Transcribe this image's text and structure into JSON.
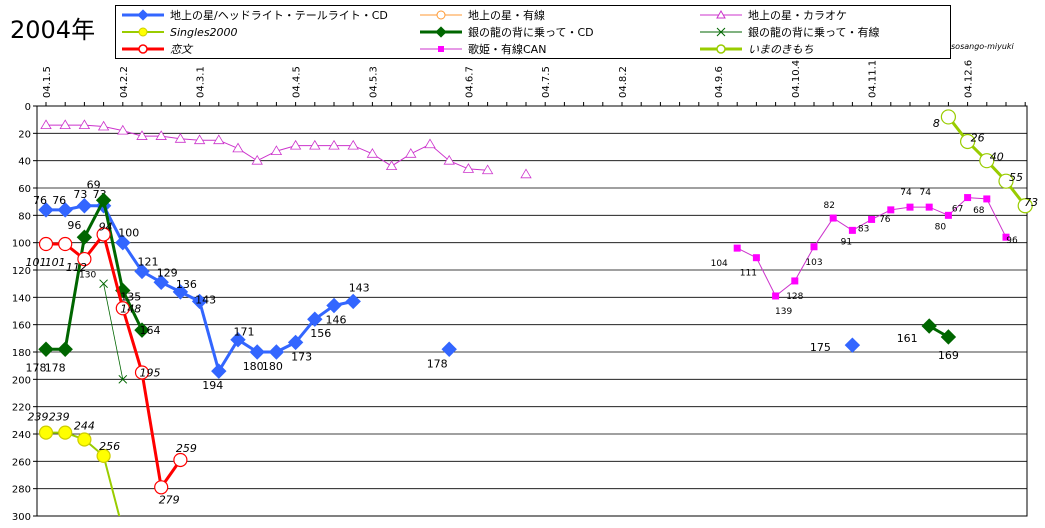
{
  "title": "2004年",
  "credit": "sosango-miyuki",
  "colors": {
    "blue": "#3366FF",
    "orange": "#FF9933",
    "magenta": "#FF00FF",
    "mmagenta": "#CC33CC",
    "yellow": "#FFFF00",
    "yellowLine": "#99CC00",
    "green": "#006600",
    "red": "#FF0000",
    "limeLine": "#99CC00",
    "grid": "#000000"
  },
  "legend": [
    {
      "key": "s1",
      "label": "地上の星/ヘッドライト・テールライト・CD",
      "italic": false
    },
    {
      "key": "s2",
      "label": "地上の星・有線",
      "italic": false
    },
    {
      "key": "s3",
      "label": "地上の星・カラオケ",
      "italic": false
    },
    {
      "key": "s4",
      "label": "Singles2000",
      "italic": true
    },
    {
      "key": "s5",
      "label": "銀の龍の背に乗って・CD",
      "italic": false
    },
    {
      "key": "s6",
      "label": "銀の龍の背に乗って・有線",
      "italic": false
    },
    {
      "key": "s7",
      "label": "恋文",
      "italic": true
    },
    {
      "key": "s8",
      "label": "歌姫・有線CAN",
      "italic": false
    },
    {
      "key": "s9",
      "label": "いまのきもち",
      "italic": true
    }
  ],
  "chart_data": {
    "type": "line",
    "title": "2004年",
    "ylim": [
      0,
      300
    ],
    "yaxis_reversed": true,
    "y_ticks": [
      0,
      20,
      40,
      60,
      80,
      100,
      120,
      140,
      160,
      180,
      200,
      220,
      240,
      260,
      280,
      300
    ],
    "grid": true,
    "num_slots": 52,
    "x_tick_labels": [
      {
        "slot": 0,
        "label": "04.1.5"
      },
      {
        "slot": 4,
        "label": "04.2.2"
      },
      {
        "slot": 8,
        "label": "04.3.1"
      },
      {
        "slot": 13,
        "label": "04.4.5"
      },
      {
        "slot": 17,
        "label": "04.5.3"
      },
      {
        "slot": 22,
        "label": "04.6.7"
      },
      {
        "slot": 26,
        "label": "04.7.5"
      },
      {
        "slot": 30,
        "label": "04.8.2"
      },
      {
        "slot": 35,
        "label": "04.9.6"
      },
      {
        "slot": 39,
        "label": "04.10.4"
      },
      {
        "slot": 43,
        "label": "04.11.1"
      },
      {
        "slot": 48,
        "label": "04.12.6"
      }
    ],
    "series": [
      {
        "key": "s1",
        "name": "地上の星/ヘッドライト・テールライト・CD",
        "points": [
          [
            0,
            76
          ],
          [
            1,
            76
          ],
          [
            2,
            73
          ],
          [
            3,
            73
          ],
          [
            4,
            100
          ],
          [
            5,
            121
          ],
          [
            6,
            129
          ],
          [
            7,
            136
          ],
          [
            8,
            143
          ],
          [
            9,
            194
          ],
          [
            10,
            171
          ],
          [
            11,
            180
          ],
          [
            12,
            180
          ],
          [
            13,
            173
          ],
          [
            14,
            156
          ],
          [
            15,
            146
          ],
          [
            16,
            143
          ],
          [
            21,
            178
          ],
          [
            42,
            175
          ]
        ],
        "segments": [
          [
            0,
            16
          ]
        ],
        "labels": [
          "76",
          "76",
          "73",
          "73",
          "100",
          "121",
          "129",
          "136",
          "143",
          "194",
          "171",
          "180",
          "180",
          "173",
          "156",
          "146",
          "143",
          "178",
          "175"
        ]
      },
      {
        "key": "s3",
        "name": "地上の星・カラオケ",
        "points": [
          [
            0,
            14
          ],
          [
            1,
            14
          ],
          [
            2,
            14
          ],
          [
            3,
            15
          ],
          [
            4,
            18
          ],
          [
            5,
            22
          ],
          [
            6,
            22
          ],
          [
            7,
            24
          ],
          [
            8,
            25
          ],
          [
            9,
            25
          ],
          [
            10,
            31
          ],
          [
            11,
            40
          ],
          [
            12,
            33
          ],
          [
            13,
            29
          ],
          [
            14,
            29
          ],
          [
            15,
            29
          ],
          [
            16,
            29
          ],
          [
            17,
            35
          ],
          [
            18,
            44
          ],
          [
            19,
            35
          ],
          [
            20,
            28
          ],
          [
            21,
            40
          ],
          [
            22,
            46
          ],
          [
            23,
            47
          ],
          [
            25,
            50
          ]
        ],
        "segments": [
          [
            0,
            23
          ]
        ],
        "labels": []
      },
      {
        "key": "s4",
        "name": "Singles2000",
        "points": [
          [
            0,
            239
          ],
          [
            1,
            239
          ],
          [
            2,
            244
          ],
          [
            3,
            256
          ],
          [
            4,
            310
          ]
        ],
        "segments": [
          [
            0,
            4
          ]
        ],
        "labels": [
          "239",
          "239",
          "244",
          "256"
        ]
      },
      {
        "key": "s5",
        "name": "銀の龍の背に乗って・CD",
        "points": [
          [
            0,
            178
          ],
          [
            1,
            178
          ],
          [
            2,
            96
          ],
          [
            3,
            69
          ],
          [
            4,
            135
          ],
          [
            5,
            164
          ],
          [
            46,
            161
          ],
          [
            47,
            169
          ]
        ],
        "segments": [
          [
            0,
            5
          ],
          [
            6,
            7
          ]
        ],
        "labels": [
          "178",
          "178",
          "96",
          "69",
          "135",
          "164",
          "161",
          "169"
        ]
      },
      {
        "key": "s6",
        "name": "銀の龍の背に乗って・有線",
        "points": [
          [
            3,
            130
          ],
          [
            4,
            200
          ]
        ],
        "segments": [
          [
            0,
            1
          ]
        ],
        "labels": [
          "130"
        ]
      },
      {
        "key": "s7",
        "name": "恋文",
        "points": [
          [
            0,
            101
          ],
          [
            1,
            101
          ],
          [
            2,
            112
          ],
          [
            3,
            94
          ],
          [
            4,
            148
          ],
          [
            5,
            195
          ],
          [
            6,
            279
          ],
          [
            7,
            259
          ]
        ],
        "segments": [
          [
            0,
            7
          ]
        ],
        "labels": [
          "101",
          "101",
          "112",
          "94",
          "148",
          "195",
          "279",
          "259"
        ]
      },
      {
        "key": "s8",
        "name": "歌姫・有線CAN",
        "points": [
          [
            36,
            104
          ],
          [
            37,
            111
          ],
          [
            38,
            139
          ],
          [
            39,
            128
          ],
          [
            40,
            103
          ],
          [
            41,
            82
          ],
          [
            42,
            91
          ],
          [
            43,
            83
          ],
          [
            44,
            76
          ],
          [
            45,
            74
          ],
          [
            46,
            74
          ],
          [
            47,
            80
          ],
          [
            48,
            67
          ],
          [
            49,
            68
          ],
          [
            50,
            96
          ]
        ],
        "segments": [
          [
            0,
            14
          ]
        ],
        "labels": [
          "104",
          "111",
          "139",
          "128",
          "103",
          "82",
          "91",
          "83",
          "76",
          "74",
          "74",
          "80",
          "67",
          "68",
          "96"
        ]
      },
      {
        "key": "s9",
        "name": "いまのきもち",
        "points": [
          [
            47,
            8
          ],
          [
            48,
            26
          ],
          [
            49,
            40
          ],
          [
            50,
            55
          ],
          [
            51,
            73
          ]
        ],
        "segments": [
          [
            0,
            4
          ]
        ],
        "labels": [
          "8",
          "26",
          "40",
          "55",
          "73"
        ]
      }
    ]
  }
}
